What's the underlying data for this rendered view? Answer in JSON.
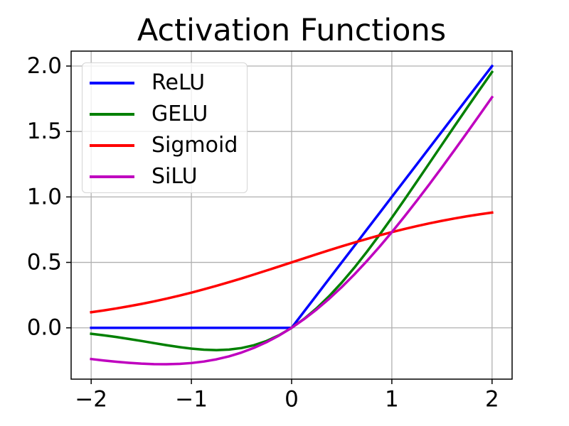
{
  "chart_data": {
    "type": "line",
    "title": "Activation Functions",
    "xlabel": "",
    "ylabel": "",
    "xlim": [
      -2.2,
      2.2
    ],
    "ylim": [
      -0.392,
      2.114
    ],
    "grid": true,
    "grid_color": "#b0b0b0",
    "axis_color": "#000000",
    "background": "#ffffff",
    "legend_position": "upper left",
    "xticks": {
      "values": [
        -2,
        -1,
        0,
        1,
        2
      ],
      "labels": [
        "−2",
        "−1",
        "0",
        "1",
        "2"
      ]
    },
    "yticks": {
      "values": [
        0.0,
        0.5,
        1.0,
        1.5,
        2.0
      ],
      "labels": [
        "0.0",
        "0.5",
        "1.0",
        "1.5",
        "2.0"
      ]
    },
    "x": [
      -2,
      -1.875,
      -1.75,
      -1.625,
      -1.5,
      -1.375,
      -1.25,
      -1.125,
      -1,
      -0.875,
      -0.75,
      -0.625,
      -0.5,
      -0.375,
      -0.25,
      -0.125,
      0,
      0.125,
      0.25,
      0.375,
      0.5,
      0.625,
      0.75,
      0.875,
      1,
      1.125,
      1.25,
      1.375,
      1.5,
      1.625,
      1.75,
      1.875,
      2
    ],
    "series": [
      {
        "name": "ReLU",
        "color": "#0000ff",
        "values": [
          0,
          0,
          0,
          0,
          0,
          0,
          0,
          0,
          0,
          0,
          0,
          0,
          0,
          0,
          0,
          0,
          0,
          0.125,
          0.25,
          0.375,
          0.5,
          0.625,
          0.75,
          0.875,
          1,
          1.125,
          1.25,
          1.375,
          1.5,
          1.625,
          1.75,
          1.875,
          2
        ]
      },
      {
        "name": "GELU",
        "color": "#008000",
        "values": [
          -0.0455,
          -0.057,
          -0.0701,
          -0.0847,
          -0.1002,
          -0.1163,
          -0.1321,
          -0.1466,
          -0.1587,
          -0.167,
          -0.17,
          -0.1663,
          -0.1543,
          -0.1327,
          -0.1003,
          -0.0563,
          0,
          0.0687,
          0.1497,
          0.2423,
          0.3457,
          0.4588,
          0.58,
          0.7081,
          0.8413,
          0.9784,
          1.1179,
          1.2587,
          1.3998,
          1.5403,
          1.6799,
          1.818,
          1.9545
        ]
      },
      {
        "name": "Sigmoid",
        "color": "#ff0000",
        "values": [
          0.1192,
          0.133,
          0.148,
          0.1645,
          0.1824,
          0.2018,
          0.2227,
          0.2451,
          0.2689,
          0.2942,
          0.3208,
          0.3487,
          0.3775,
          0.4073,
          0.4378,
          0.4688,
          0.5,
          0.5312,
          0.5622,
          0.5927,
          0.6225,
          0.6513,
          0.6792,
          0.7058,
          0.7311,
          0.7549,
          0.7773,
          0.7982,
          0.8176,
          0.8355,
          0.852,
          0.867,
          0.8808
        ]
      },
      {
        "name": "SiLU",
        "color": "#bf00bf",
        "values": [
          -0.2384,
          -0.2494,
          -0.2589,
          -0.2673,
          -0.2736,
          -0.2775,
          -0.2784,
          -0.2757,
          -0.2689,
          -0.2574,
          -0.2406,
          -0.2179,
          -0.1888,
          -0.1527,
          -0.1095,
          -0.0586,
          0,
          0.0664,
          0.1406,
          0.2223,
          0.3112,
          0.4071,
          0.5094,
          0.6176,
          0.7311,
          0.8493,
          0.9716,
          1.0975,
          1.2263,
          1.3577,
          1.491,
          1.6256,
          1.7616
        ]
      }
    ]
  }
}
